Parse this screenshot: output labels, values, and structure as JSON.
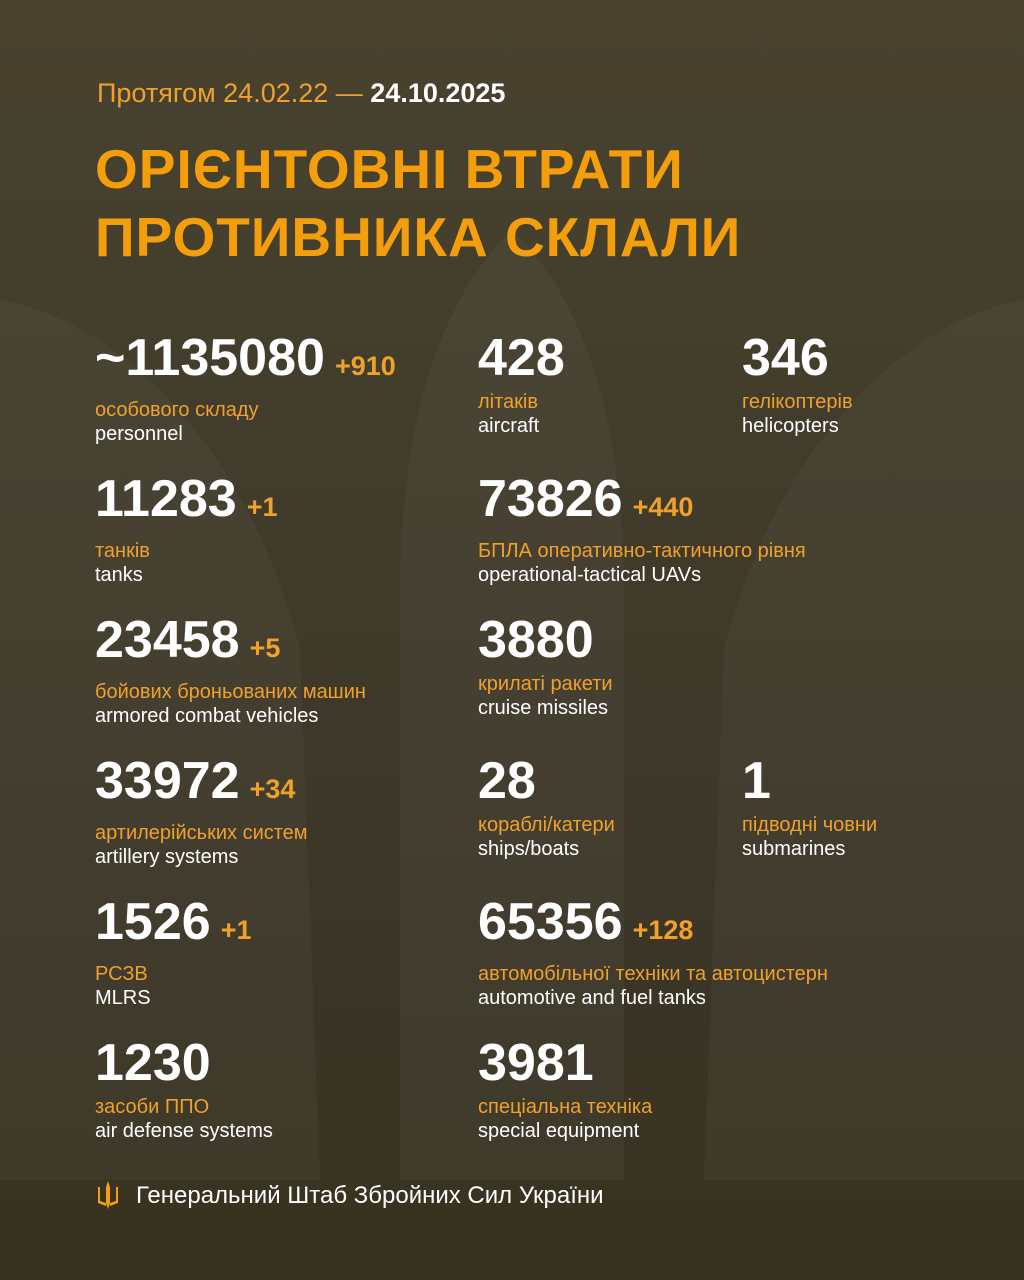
{
  "header": {
    "period_prefix": "Протягом 24.02.22 —",
    "period_end": "24.10.2025",
    "title_line1": "ОРІЄНТОВНІ ВТРАТИ",
    "title_line2": "ПРОТИВНИКА СКЛАЛИ"
  },
  "stats": [
    {
      "value": "~1135080",
      "delta": "+910",
      "ua": "особового складу",
      "en": "personnel"
    },
    {
      "value": "428",
      "delta": "",
      "ua": "літаків",
      "en": "aircraft"
    },
    {
      "value": "346",
      "delta": "",
      "ua": "гелікоптерів",
      "en": "helicopters"
    },
    {
      "value": "11283",
      "delta": "+1",
      "ua": "танків",
      "en": "tanks"
    },
    {
      "value": "73826",
      "delta": "+440",
      "ua": "БПЛА оперативно-тактичного рівня",
      "en": "operational-tactical UAVs"
    },
    {
      "value": "23458",
      "delta": "+5",
      "ua": "бойових броньованих машин",
      "en": "armored combat vehicles"
    },
    {
      "value": "3880",
      "delta": "",
      "ua": "крилаті ракети",
      "en": "cruise missiles"
    },
    {
      "value": "33972",
      "delta": "+34",
      "ua": "артилерійських систем",
      "en": "artillery systems"
    },
    {
      "value": "28",
      "delta": "",
      "ua": "кораблі/катери",
      "en": "ships/boats"
    },
    {
      "value": "1",
      "delta": "",
      "ua": "підводні човни",
      "en": "submarines"
    },
    {
      "value": "1526",
      "delta": "+1",
      "ua": "РСЗВ",
      "en": "MLRS"
    },
    {
      "value": "65356",
      "delta": "+128",
      "ua": "автомобільної техніки та автоцистерн",
      "en": "automotive and fuel tanks"
    },
    {
      "value": "1230",
      "delta": "",
      "ua": "засоби ППО",
      "en": "air defense systems"
    },
    {
      "value": "3981",
      "delta": "",
      "ua": "спеціальна техніка",
      "en": "special equipment"
    }
  ],
  "footer": {
    "text": "Генеральний Штаб Збройних Сил України",
    "icon": "trident-icon"
  },
  "colors": {
    "accent": "#f59e0b",
    "background": "#443e2e",
    "text": "#ffffff"
  }
}
